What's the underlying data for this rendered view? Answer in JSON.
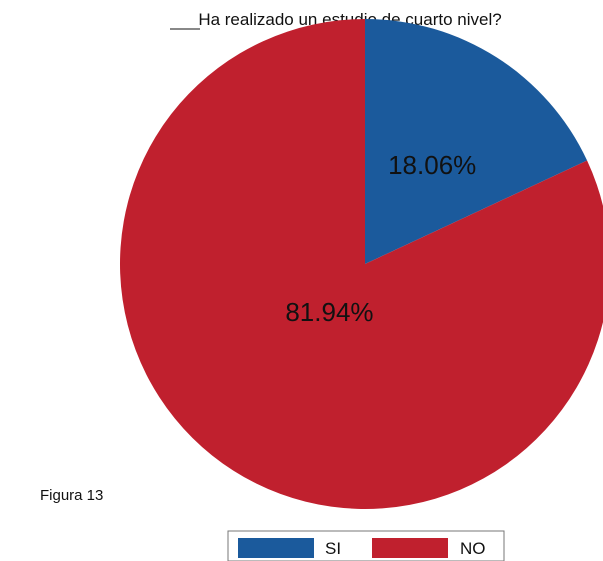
{
  "figure_label": "Figura 13",
  "chart_data": {
    "type": "pie",
    "title": "Ha realizado un estudio de cuarto nivel?",
    "slices": [
      {
        "label": "SI",
        "value": 18.06,
        "display": "18.06%",
        "color": "#1b5a9c"
      },
      {
        "label": "NO",
        "value": 81.94,
        "display": "81.94%",
        "color": "#c0202e"
      }
    ],
    "start": "12 o'clock",
    "direction": "clockwise",
    "legend_placement": "bottom"
  }
}
